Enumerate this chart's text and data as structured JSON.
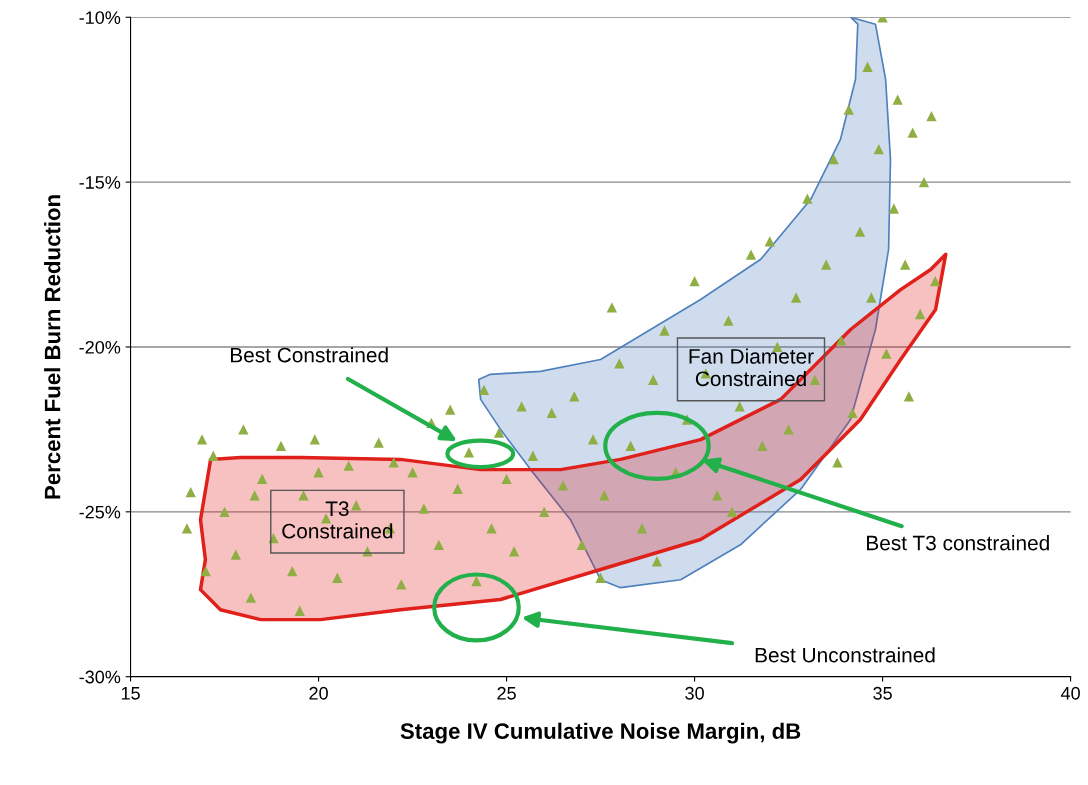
{
  "chart_data": {
    "type": "scatter",
    "xlabel": "Stage IV Cumulative Noise Margin, dB",
    "ylabel": "Percent Fuel Burn Reduction",
    "xlim": [
      15,
      40
    ],
    "xticks": [
      15,
      20,
      25,
      30,
      35,
      40
    ],
    "ylim": [
      -30,
      -10
    ],
    "yticks": [
      {
        "value": -30,
        "label": "-30%"
      },
      {
        "value": -25,
        "label": "-25%"
      },
      {
        "value": -20,
        "label": "-20%"
      },
      {
        "value": -15,
        "label": "-15%"
      },
      {
        "value": -10,
        "label": "-10%"
      }
    ],
    "grid": "y",
    "series": [
      {
        "type": "area",
        "color": "#4f81bd",
        "x": [
          24.26,
          24.57,
          25.9,
          27.5,
          28.83,
          30.16,
          31.76,
          33.09,
          33.88,
          34.28,
          34.34,
          34.15,
          34.81,
          35.08,
          35.21,
          35.16,
          34.81,
          34.15,
          32.82,
          31.22,
          29.63,
          28.03,
          27.5,
          26.7,
          25.64,
          24.84,
          24.31
        ],
        "values": [
          -20.99,
          -20.83,
          -20.74,
          -20.38,
          -19.47,
          -18.56,
          -17.34,
          -15.52,
          -13.7,
          -11.88,
          -10.21,
          -10.0,
          -10.21,
          -11.88,
          -14.31,
          -17.04,
          -19.47,
          -22.2,
          -24.32,
          -26.0,
          -27.06,
          -27.3,
          -27.06,
          -25.24,
          -23.72,
          -22.5,
          -21.59
        ]
      },
      {
        "type": "area",
        "color": "#e0201b",
        "x": [
          17.13,
          17.93,
          19.52,
          22.18,
          24.31,
          26.44,
          28.03,
          30.16,
          32.29,
          34.15,
          35.48,
          36.28,
          36.68,
          36.41,
          35.48,
          34.41,
          32.82,
          30.16,
          27.5,
          24.84,
          22.18,
          20.05,
          18.46,
          17.39,
          16.86,
          16.99,
          16.86
        ],
        "values": [
          -23.41,
          -23.35,
          -23.35,
          -23.41,
          -23.72,
          -23.72,
          -23.41,
          -22.81,
          -21.59,
          -19.47,
          -18.26,
          -17.65,
          -17.19,
          -18.86,
          -20.38,
          -22.2,
          -24.02,
          -25.84,
          -26.75,
          -27.66,
          -27.97,
          -28.27,
          -28.27,
          -27.97,
          -27.36,
          -26.45,
          -25.24
        ]
      },
      {
        "marker": "triangle",
        "color": "#8fae44",
        "x": [
          16.5,
          16.6,
          16.9,
          17.2,
          17.5,
          17.8,
          18.0,
          18.2,
          18.5,
          18.8,
          19.0,
          19.3,
          19.6,
          19.9,
          20.2,
          20.5,
          20.8,
          21.0,
          21.3,
          21.6,
          21.9,
          22.2,
          22.5,
          22.8,
          23.0,
          23.2,
          23.5,
          23.7,
          24.0,
          24.2,
          24.4,
          24.6,
          24.8,
          25.0,
          25.2,
          25.4,
          25.7,
          26.0,
          26.2,
          26.5,
          26.8,
          27.0,
          27.3,
          27.6,
          27.8,
          28.0,
          28.3,
          28.6,
          28.9,
          29.2,
          29.5,
          29.8,
          30.0,
          30.3,
          30.6,
          30.9,
          31.2,
          31.5,
          31.8,
          32.0,
          32.2,
          32.5,
          32.7,
          33.0,
          33.2,
          33.5,
          33.7,
          33.9,
          34.1,
          34.2,
          34.4,
          34.6,
          34.7,
          34.9,
          35.0,
          35.1,
          35.3,
          35.4,
          35.6,
          35.8,
          36.0,
          36.1,
          36.3,
          36.4,
          35.7,
          33.8,
          31.0,
          29.0,
          27.5,
          22.0,
          20.0,
          18.3,
          17.0,
          19.5
        ],
        "values": [
          -25.5,
          -24.4,
          -22.8,
          -23.3,
          -25.0,
          -26.3,
          -22.5,
          -27.6,
          -24.0,
          -25.8,
          -23.0,
          -26.8,
          -24.5,
          -22.8,
          -25.2,
          -27.0,
          -23.6,
          -24.8,
          -26.2,
          -22.9,
          -25.5,
          -27.2,
          -23.8,
          -24.9,
          -22.3,
          -26.0,
          -21.9,
          -24.3,
          -23.2,
          -27.1,
          -21.3,
          -25.5,
          -22.6,
          -24.0,
          -26.2,
          -21.8,
          -23.3,
          -25.0,
          -22.0,
          -24.2,
          -21.5,
          -26.0,
          -22.8,
          -24.5,
          -18.8,
          -20.5,
          -23.0,
          -25.5,
          -21.0,
          -19.5,
          -23.8,
          -22.2,
          -18.0,
          -20.8,
          -24.5,
          -19.2,
          -21.8,
          -17.2,
          -23.0,
          -16.8,
          -20.0,
          -22.5,
          -18.5,
          -15.5,
          -21.0,
          -17.5,
          -14.3,
          -19.8,
          -12.8,
          -22.0,
          -16.5,
          -11.5,
          -18.5,
          -14.0,
          -10.0,
          -20.2,
          -15.8,
          -12.5,
          -17.5,
          -13.5,
          -19.0,
          -15.0,
          -13.0,
          -18.0,
          -21.5,
          -23.5,
          -25.0,
          -26.5,
          -27.0,
          -23.5,
          -23.8,
          -24.5,
          -26.8,
          -28.0
        ]
      }
    ],
    "annotations": [
      "Fan Diameter\nConstrained",
      "T3\nConstrained",
      "Best Constrained",
      "Best T3 constrained",
      "Best Unconstrained"
    ]
  }
}
